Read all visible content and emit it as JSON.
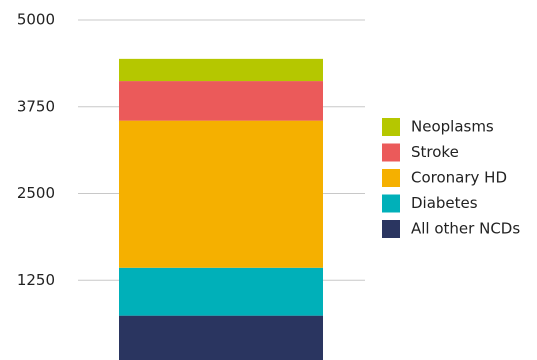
{
  "chart_data": {
    "type": "stacked_bar",
    "series": [
      {
        "name": "All other NCDs",
        "color": "#2a3560",
        "values": [
          740
        ]
      },
      {
        "name": "Diabetes",
        "color": "#00b0b9",
        "values": [
          690
        ]
      },
      {
        "name": "Coronary HD",
        "color": "#f5b000",
        "values": [
          2120
        ]
      },
      {
        "name": "Stroke",
        "color": "#eb5a5a",
        "values": [
          570
        ]
      },
      {
        "name": "Neoplasms",
        "color": "#b5c700",
        "values": [
          320
        ]
      }
    ],
    "ylim": [
      0,
      5000
    ],
    "yticks": [
      1250,
      2500,
      3750,
      5000
    ],
    "grid": true,
    "legend": "right"
  }
}
